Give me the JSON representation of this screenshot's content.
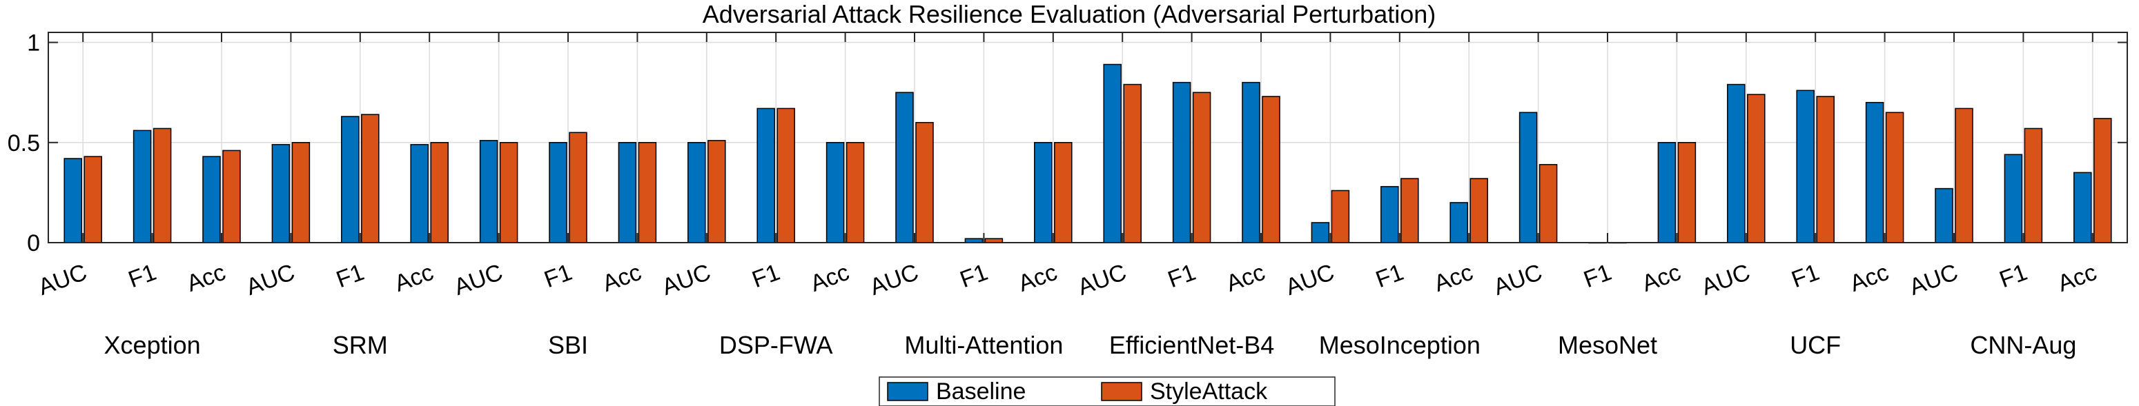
{
  "chart_data": {
    "type": "bar",
    "title": "Adversarial Attack Resilience Evaluation (Adversarial Perturbation)",
    "xlabel": "",
    "ylabel": "",
    "ylim": [
      0,
      1.05
    ],
    "yticks": [
      0,
      0.5,
      1
    ],
    "ytick_labels": [
      "0",
      "0.5",
      "1"
    ],
    "grid": true,
    "legend_position": "bottom-center",
    "metrics": [
      "AUC",
      "F1",
      "Acc"
    ],
    "models": [
      "Xception",
      "SRM",
      "SBI",
      "DSP-FWA",
      "Multi-Attention",
      "EfficientNet-B4",
      "MesoInception",
      "MesoNet",
      "UCF",
      "CNN-Aug"
    ],
    "categories": [
      "AUC",
      "F1",
      "Acc",
      "AUC",
      "F1",
      "Acc",
      "AUC",
      "F1",
      "Acc",
      "AUC",
      "F1",
      "Acc",
      "AUC",
      "F1",
      "Acc",
      "AUC",
      "F1",
      "Acc",
      "AUC",
      "F1",
      "Acc",
      "AUC",
      "F1",
      "Acc",
      "AUC",
      "F1",
      "Acc",
      "AUC",
      "F1",
      "Acc"
    ],
    "series": [
      {
        "name": "Baseline",
        "color": "#0072BD",
        "values": [
          0.42,
          0.56,
          0.43,
          0.49,
          0.63,
          0.49,
          0.51,
          0.5,
          0.5,
          0.5,
          0.67,
          0.5,
          0.75,
          0.02,
          0.5,
          0.89,
          0.8,
          0.8,
          0.1,
          0.28,
          0.2,
          0.65,
          0.0,
          0.5,
          0.79,
          0.76,
          0.7,
          0.27,
          0.44,
          0.35
        ]
      },
      {
        "name": "StyleAttack",
        "color": "#D95319",
        "values": [
          0.43,
          0.57,
          0.46,
          0.5,
          0.64,
          0.5,
          0.5,
          0.55,
          0.5,
          0.51,
          0.67,
          0.5,
          0.6,
          0.02,
          0.5,
          0.79,
          0.75,
          0.73,
          0.26,
          0.32,
          0.32,
          0.39,
          0.0,
          0.5,
          0.74,
          0.73,
          0.65,
          0.67,
          0.57,
          0.62
        ]
      }
    ]
  }
}
